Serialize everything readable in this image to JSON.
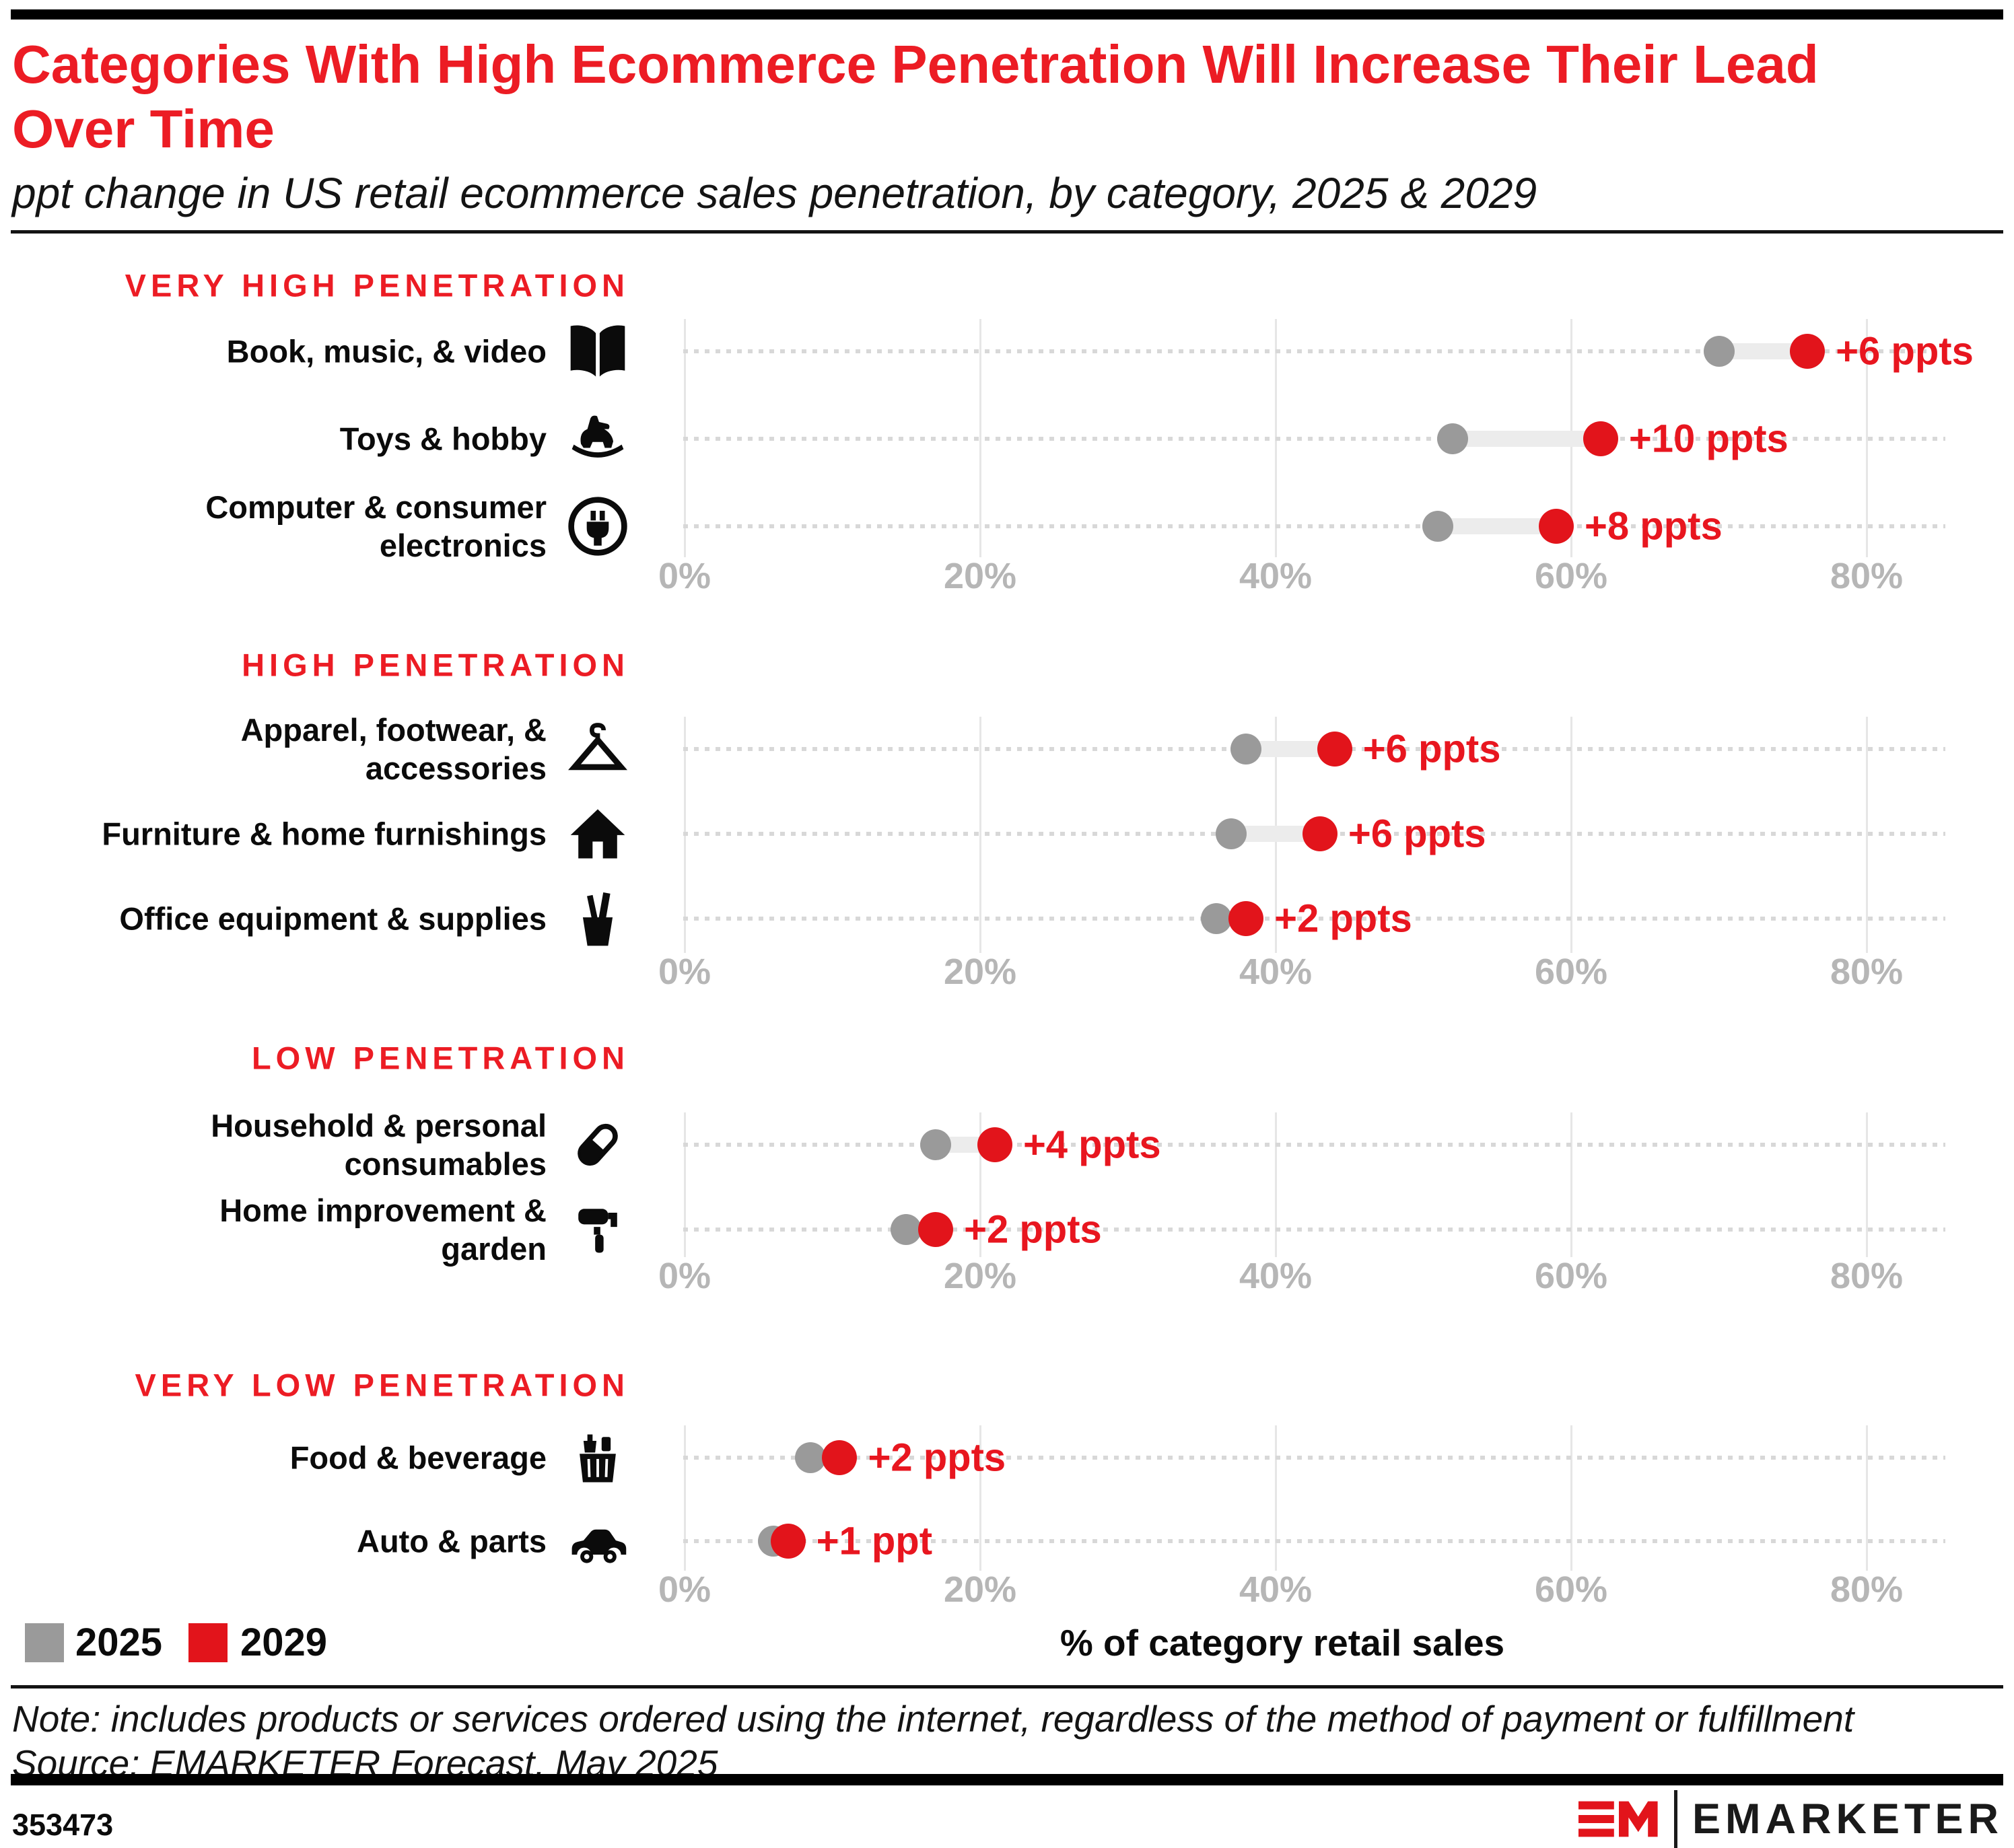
{
  "header": {
    "title": "Categories With High Ecommerce Penetration Will Increase Their Lead\nOver Time",
    "subtitle": "ppt change in US retail ecommerce sales penetration, by category, 2025 & 2029"
  },
  "sections": [
    {
      "header": "VERY HIGH PENETRATION",
      "rows": [
        {
          "label": "Book, music, & video",
          "icon": "book-icon",
          "pct_2025": 70,
          "pct_2029": 76,
          "delta": "+6 ppts"
        },
        {
          "label": "Toys & hobby",
          "icon": "rocking-horse-icon",
          "pct_2025": 52,
          "pct_2029": 62,
          "delta": "+10 ppts"
        },
        {
          "label": "Computer & consumer\nelectronics",
          "icon": "power-plug-icon",
          "pct_2025": 51,
          "pct_2029": 59,
          "delta": "+8 ppts"
        }
      ]
    },
    {
      "header": "HIGH PENETRATION",
      "rows": [
        {
          "label": "Apparel, footwear, &\naccessories",
          "icon": "hanger-icon",
          "pct_2025": 38,
          "pct_2029": 44,
          "delta": "+6 ppts"
        },
        {
          "label": "Furniture & home furnishings",
          "icon": "house-icon",
          "pct_2025": 37,
          "pct_2029": 43,
          "delta": "+6 ppts"
        },
        {
          "label": "Office equipment & supplies",
          "icon": "pencil-cup-icon",
          "pct_2025": 36,
          "pct_2029": 38,
          "delta": "+2 ppts"
        }
      ]
    },
    {
      "header": "LOW PENETRATION",
      "rows": [
        {
          "label": "Household & personal\nconsumables",
          "icon": "capsule-icon",
          "pct_2025": 17,
          "pct_2029": 21,
          "delta": "+4 ppts"
        },
        {
          "label": "Home improvement &\ngarden",
          "icon": "paint-roller-icon",
          "pct_2025": 15,
          "pct_2029": 17,
          "delta": "+2 ppts"
        }
      ]
    },
    {
      "header": "VERY LOW PENETRATION",
      "rows": [
        {
          "label": "Food & beverage",
          "icon": "basket-icon",
          "pct_2025": 8.5,
          "pct_2029": 10.5,
          "delta": "+2 ppts"
        },
        {
          "label": "Auto & parts",
          "icon": "car-icon",
          "pct_2025": 6,
          "pct_2029": 7,
          "delta": "+1 ppt"
        }
      ]
    }
  ],
  "axis": {
    "ticks": [
      "0%",
      "20%",
      "40%",
      "60%",
      "80%"
    ],
    "title": "% of category retail sales"
  },
  "legend": {
    "items": [
      {
        "label": "2025",
        "color": "#9a9a9a"
      },
      {
        "label": "2029",
        "color": "#e2141b"
      }
    ]
  },
  "footer": {
    "note": "Note: includes products or services ordered using the internet, regardless of the method of payment or fulfillment",
    "source": "Source: EMARKETER Forecast, May 2025",
    "chart_id": "353473",
    "brand": "EMARKETER"
  },
  "colors": {
    "brand_red": "#ec1c24",
    "dot_red": "#e2141b",
    "dot_gray": "#9a9a9a",
    "gridline": "#e6e6e6",
    "dotted_line": "#d8d8d8",
    "tick_text": "#b6b6b6"
  },
  "chart_data": {
    "type": "scatter",
    "subtype": "dumbbell",
    "title": "Categories With High Ecommerce Penetration Will Increase Their Lead Over Time",
    "subtitle": "ppt change in US retail ecommerce sales penetration, by category, 2025 & 2029",
    "xlabel": "% of category retail sales",
    "xlim": [
      0,
      88
    ],
    "x_ticks": [
      "0%",
      "20%",
      "40%",
      "60%",
      "80%"
    ],
    "grid": true,
    "legend_position": "bottom-left",
    "series_names": [
      "2025",
      "2029"
    ],
    "groups": [
      {
        "group": "VERY HIGH PENETRATION",
        "categories": [
          "Book, music, & video",
          "Toys & hobby",
          "Computer & consumer electronics"
        ],
        "series": [
          {
            "name": "2025",
            "values": [
              70,
              52,
              51
            ]
          },
          {
            "name": "2029",
            "values": [
              76,
              62,
              59
            ]
          }
        ],
        "delta_labels": [
          "+6 ppts",
          "+10 ppts",
          "+8 ppts"
        ]
      },
      {
        "group": "HIGH PENETRATION",
        "categories": [
          "Apparel, footwear, & accessories",
          "Furniture & home furnishings",
          "Office equipment & supplies"
        ],
        "series": [
          {
            "name": "2025",
            "values": [
              38,
              37,
              36
            ]
          },
          {
            "name": "2029",
            "values": [
              44,
              43,
              38
            ]
          }
        ],
        "delta_labels": [
          "+6 ppts",
          "+6 ppts",
          "+2 ppts"
        ]
      },
      {
        "group": "LOW PENETRATION",
        "categories": [
          "Household & personal consumables",
          "Home improvement & garden"
        ],
        "series": [
          {
            "name": "2025",
            "values": [
              17,
              15
            ]
          },
          {
            "name": "2029",
            "values": [
              21,
              17
            ]
          }
        ],
        "delta_labels": [
          "+4 ppts",
          "+2 ppts"
        ]
      },
      {
        "group": "VERY LOW PENETRATION",
        "categories": [
          "Food & beverage",
          "Auto & parts"
        ],
        "series": [
          {
            "name": "2025",
            "values": [
              8.5,
              6
            ]
          },
          {
            "name": "2029",
            "values": [
              10.5,
              7
            ]
          }
        ],
        "delta_labels": [
          "+2 ppts",
          "+1 ppt"
        ]
      }
    ]
  }
}
